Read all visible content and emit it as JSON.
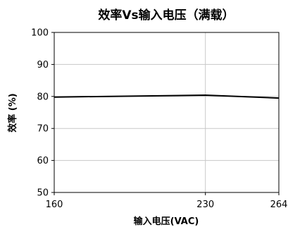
{
  "chart_data": {
    "type": "line",
    "title": "效率Vs输入电压（满载）",
    "xlabel": "输入电压(VAC)",
    "ylabel": "效率 (%)",
    "x": [
      160,
      230,
      264
    ],
    "x_ticks": [
      "160",
      "230",
      "264"
    ],
    "xlim": [
      160,
      264
    ],
    "y_ticks": [
      "50",
      "60",
      "70",
      "80",
      "90",
      "100"
    ],
    "ylim": [
      50,
      100
    ],
    "series": [
      {
        "values": [
          79.8,
          80.4,
          79.5
        ],
        "color": "#000000"
      }
    ],
    "grid": true,
    "legend": "none"
  }
}
